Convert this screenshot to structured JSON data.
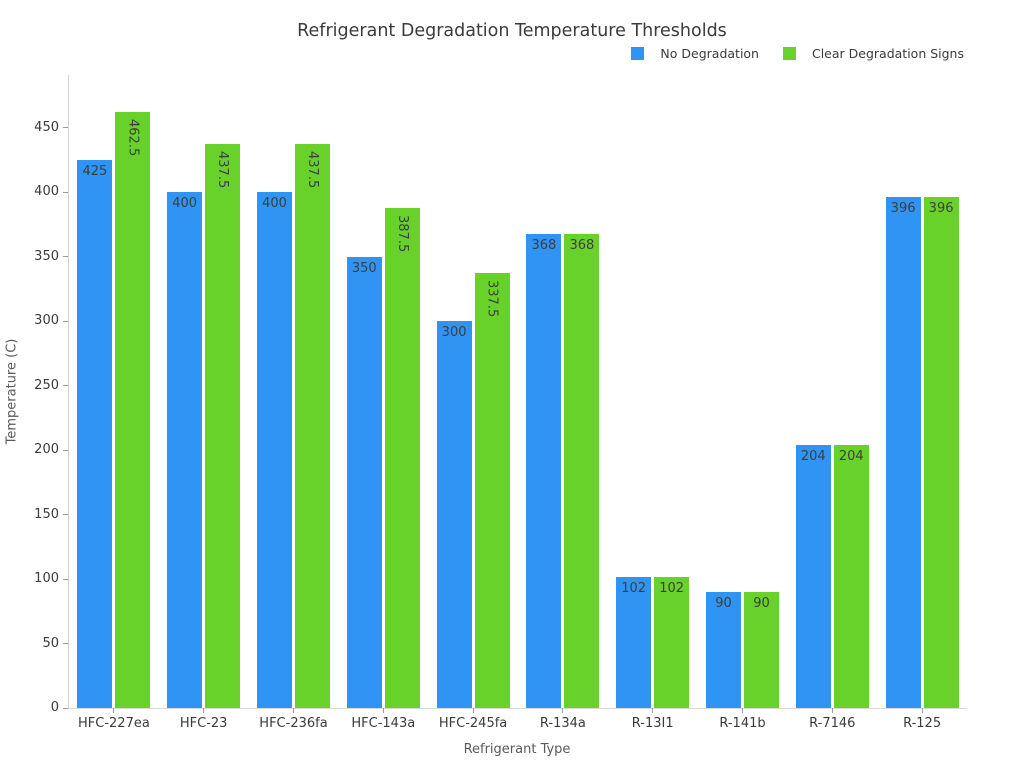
{
  "chart_data": {
    "type": "bar",
    "title": "Refrigerant Degradation Temperature Thresholds",
    "xlabel": "Refrigerant Type",
    "ylabel": "Temperature (C)",
    "categories": [
      "HFC-227ea",
      "HFC-23",
      "HFC-236fa",
      "HFC-143a",
      "HFC-245fa",
      "R-134a",
      "R-13I1",
      "R-141b",
      "R-7146",
      "R-125"
    ],
    "series": [
      {
        "name": "No Degradation",
        "color": "#2f94f3",
        "values": [
          425,
          400,
          400,
          350,
          300,
          368,
          102,
          90,
          204,
          396
        ]
      },
      {
        "name": "Clear Degradation Signs",
        "color": "#68d22a",
        "values": [
          462.5,
          437.5,
          437.5,
          387.5,
          337.5,
          368,
          102,
          90,
          204,
          396
        ]
      }
    ],
    "yticks": [
      0,
      50,
      100,
      150,
      200,
      250,
      300,
      350,
      400,
      450
    ],
    "ylim": [
      0,
      491
    ],
    "grid": false,
    "legend_position": "top-right",
    "bar_labels": "inside-top",
    "background": "#ffffff",
    "label_color": "#3e3e3e"
  }
}
